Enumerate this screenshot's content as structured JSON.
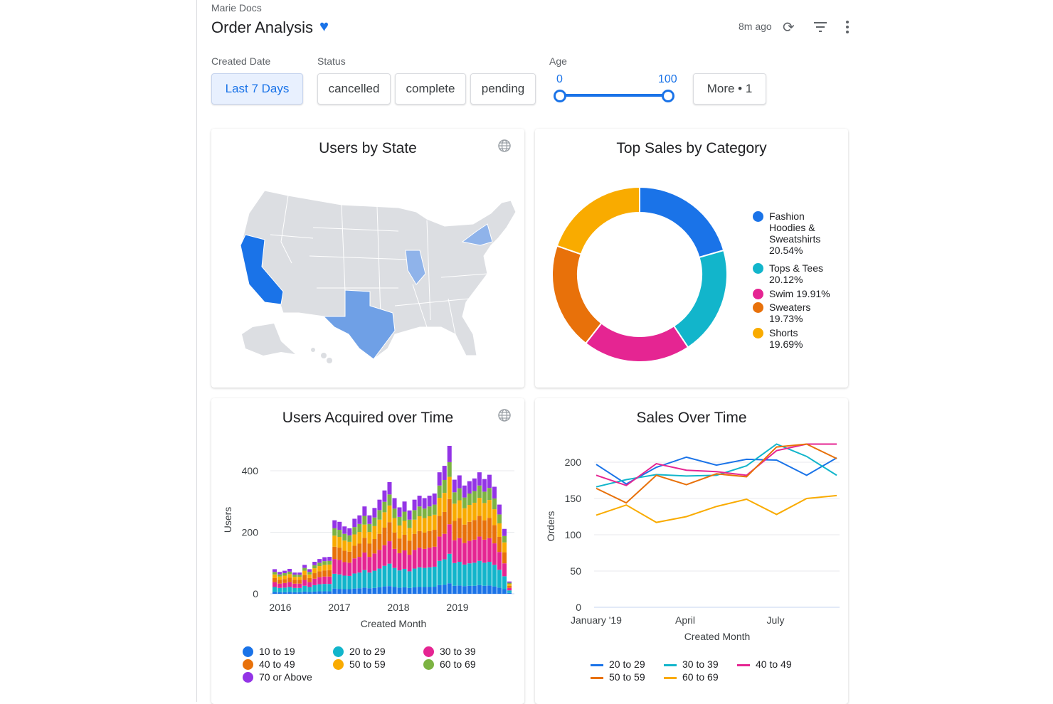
{
  "header": {
    "breadcrumb": "Marie Docs",
    "title": "Order Analysis",
    "favorite_icon": "heart-icon",
    "updated": "8m ago"
  },
  "filters": {
    "created_date": {
      "label": "Created Date",
      "value": "Last 7 Days"
    },
    "status": {
      "label": "Status",
      "options": [
        "cancelled",
        "complete",
        "pending"
      ]
    },
    "age": {
      "label": "Age",
      "min": "0",
      "max": "100",
      "low": 0,
      "high": 100
    },
    "more": "More • 1"
  },
  "colors": {
    "accent": "#1a73e8",
    "c1": "#1a73e8",
    "c2": "#12b5cb",
    "c3": "#e52592",
    "c4": "#e8710a",
    "c5": "#f9ab00",
    "c6": "#7cb342",
    "c7": "#9334e6"
  },
  "map": {
    "title": "Users by State",
    "highlighted": [
      "California",
      "Texas",
      "Illinois",
      "New York"
    ]
  },
  "chart_data": [
    {
      "type": "pie",
      "title": "Top Sales by Category",
      "donut": true,
      "slices": [
        {
          "label": "Fashion Hoodies & Sweatshirts",
          "value": 20.54,
          "text": "Fashion Hoodies & Sweatshirts 20.54%"
        },
        {
          "label": "Tops & Tees",
          "value": 20.12,
          "text": "Tops & Tees 20.12%"
        },
        {
          "label": "Swim",
          "value": 19.91,
          "text": "Swim 19.91%"
        },
        {
          "label": "Sweaters",
          "value": 19.73,
          "text": "Sweaters 19.73%"
        },
        {
          "label": "Shorts",
          "value": 19.69,
          "text": "Shorts 19.69%"
        }
      ],
      "legend": "right"
    },
    {
      "type": "bar",
      "stacked": true,
      "title": "Users Acquired over Time",
      "xlabel": "Created Month",
      "ylabel": "Users",
      "ylim": [
        0,
        400
      ],
      "yticks": [
        "0",
        "200",
        "400"
      ],
      "xticks": [
        "2016",
        "2017",
        "2018",
        "2019"
      ],
      "grid": true,
      "legend": "bottom",
      "series": [
        {
          "name": "10 to 19",
          "values": [
            6,
            5,
            5,
            6,
            5,
            5,
            7,
            6,
            7,
            8,
            8,
            8,
            17,
            16,
            15,
            15,
            17,
            18,
            20,
            18,
            19,
            21,
            24,
            25,
            22,
            20,
            21,
            19,
            21,
            22,
            22,
            22,
            23,
            28,
            29,
            34,
            26,
            27,
            25,
            26,
            26,
            28,
            26,
            27,
            24,
            20,
            15,
            3
          ]
        },
        {
          "name": "20 to 29",
          "values": [
            16,
            14,
            15,
            16,
            14,
            14,
            19,
            16,
            21,
            23,
            24,
            24,
            48,
            47,
            44,
            43,
            49,
            51,
            57,
            51,
            56,
            61,
            67,
            73,
            62,
            56,
            60,
            54,
            61,
            64,
            62,
            64,
            65,
            79,
            83,
            96,
            74,
            77,
            70,
            73,
            75,
            79,
            75,
            77,
            70,
            58,
            42,
            8
          ]
        },
        {
          "name": "30 to 39",
          "values": [
            16,
            14,
            15,
            16,
            14,
            14,
            19,
            16,
            21,
            23,
            24,
            24,
            48,
            47,
            44,
            43,
            49,
            51,
            57,
            51,
            56,
            61,
            67,
            73,
            62,
            56,
            60,
            54,
            61,
            64,
            62,
            64,
            65,
            79,
            83,
            96,
            74,
            77,
            70,
            73,
            75,
            79,
            75,
            77,
            70,
            58,
            42,
            8
          ]
        },
        {
          "name": "40 to 49",
          "values": [
            13,
            12,
            13,
            14,
            12,
            12,
            16,
            13,
            18,
            19,
            20,
            21,
            40,
            40,
            37,
            36,
            41,
            43,
            48,
            43,
            47,
            52,
            57,
            62,
            53,
            48,
            51,
            46,
            52,
            54,
            53,
            54,
            55,
            67,
            71,
            82,
            63,
            65,
            60,
            62,
            64,
            67,
            63,
            66,
            59,
            49,
            36,
            7
          ]
        },
        {
          "name": "50 to 59",
          "values": [
            12,
            11,
            11,
            12,
            10,
            10,
            14,
            12,
            16,
            17,
            18,
            18,
            36,
            35,
            33,
            32,
            37,
            38,
            43,
            38,
            42,
            46,
            50,
            54,
            47,
            42,
            45,
            41,
            46,
            48,
            47,
            48,
            49,
            59,
            62,
            72,
            56,
            58,
            53,
            55,
            56,
            59,
            56,
            58,
            52,
            44,
            32,
            6
          ]
        },
        {
          "name": "60 to 69",
          "values": [
            8,
            7,
            8,
            8,
            7,
            7,
            9,
            8,
            10,
            11,
            12,
            12,
            24,
            23,
            22,
            21,
            24,
            26,
            28,
            26,
            28,
            31,
            34,
            36,
            31,
            28,
            30,
            27,
            31,
            32,
            31,
            32,
            33,
            40,
            42,
            48,
            37,
            39,
            35,
            37,
            38,
            40,
            37,
            39,
            35,
            29,
            21,
            4
          ]
        },
        {
          "name": "70 or Above",
          "values": [
            9,
            8,
            8,
            9,
            7,
            7,
            10,
            9,
            11,
            12,
            13,
            13,
            26,
            26,
            24,
            23,
            27,
            28,
            31,
            28,
            31,
            34,
            37,
            40,
            34,
            31,
            33,
            30,
            34,
            35,
            34,
            35,
            36,
            43,
            46,
            53,
            41,
            42,
            39,
            40,
            41,
            43,
            41,
            43,
            38,
            32,
            23,
            4
          ]
        }
      ]
    },
    {
      "type": "line",
      "title": "Sales Over Time",
      "xlabel": "Created Month",
      "ylabel": "Orders",
      "ylim": [
        0,
        220
      ],
      "yticks": [
        "0",
        "50",
        "100",
        "150",
        "200"
      ],
      "xticks": [
        "January '19",
        "April",
        "July"
      ],
      "x": [
        "2019-01",
        "2019-02",
        "2019-03",
        "2019-04",
        "2019-05",
        "2019-06",
        "2019-07",
        "2019-08",
        "2019-09"
      ],
      "grid": true,
      "legend": "bottom",
      "series": [
        {
          "name": "20 to 29",
          "values": [
            197,
            170,
            193,
            207,
            196,
            204,
            203,
            182,
            206
          ]
        },
        {
          "name": "30 to 39",
          "values": [
            166,
            176,
            183,
            181,
            182,
            195,
            225,
            208,
            182
          ]
        },
        {
          "name": "40 to 49",
          "values": [
            182,
            168,
            198,
            189,
            187,
            182,
            216,
            225,
            225
          ]
        },
        {
          "name": "50 to 59",
          "values": [
            164,
            144,
            182,
            169,
            184,
            180,
            221,
            225,
            205
          ]
        },
        {
          "name": "60 to 69",
          "values": [
            127,
            141,
            117,
            125,
            139,
            149,
            128,
            150,
            154
          ]
        }
      ]
    }
  ]
}
